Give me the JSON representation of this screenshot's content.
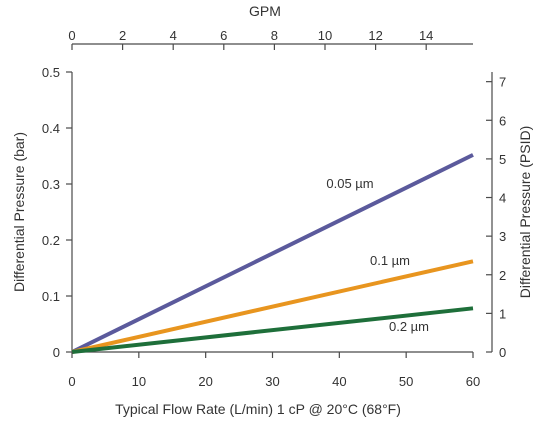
{
  "chart_data": {
    "type": "line",
    "title": "",
    "xlabel": "Typical Flow Rate (L/min) 1 cP @ 20°C (68°F)",
    "ylabel": "Differential Pressure (bar)",
    "xlim": [
      0,
      60
    ],
    "ylim": [
      0,
      0.5
    ],
    "x_ticks": [
      "0",
      "10",
      "20",
      "30",
      "40",
      "50",
      "60"
    ],
    "y_ticks": [
      "0",
      "0.1",
      "0.2",
      "0.3",
      "0.4",
      "0.5"
    ],
    "secondary_x_axis": {
      "label": "GPM",
      "position": "top",
      "ticks": [
        "0",
        "2",
        "4",
        "6",
        "8",
        "10",
        "12",
        "14"
      ],
      "tick_values": [
        0,
        2,
        4,
        6,
        8,
        10,
        12,
        14
      ],
      "lim": [
        0,
        15.85
      ]
    },
    "secondary_y_axis": {
      "label": "Differential Pressure (PSID)",
      "position": "right",
      "ticks": [
        "0",
        "1",
        "2",
        "3",
        "4",
        "5",
        "6",
        "7"
      ],
      "tick_values": [
        0,
        1,
        2,
        3,
        4,
        5,
        6,
        7
      ],
      "lim": [
        0,
        7.25
      ]
    },
    "grid": false,
    "legend": "inline labels",
    "series": [
      {
        "name": "0.05 µm",
        "x": [
          0,
          60
        ],
        "y": [
          0,
          0.352
        ],
        "color": "#5b5a9c"
      },
      {
        "name": "0.1 µm",
        "x": [
          0,
          60
        ],
        "y": [
          0,
          0.162
        ],
        "color": "#e8951f"
      },
      {
        "name": "0.2 µm",
        "x": [
          0,
          60
        ],
        "y": [
          0,
          0.078
        ],
        "color": "#1e6f3a"
      }
    ]
  }
}
